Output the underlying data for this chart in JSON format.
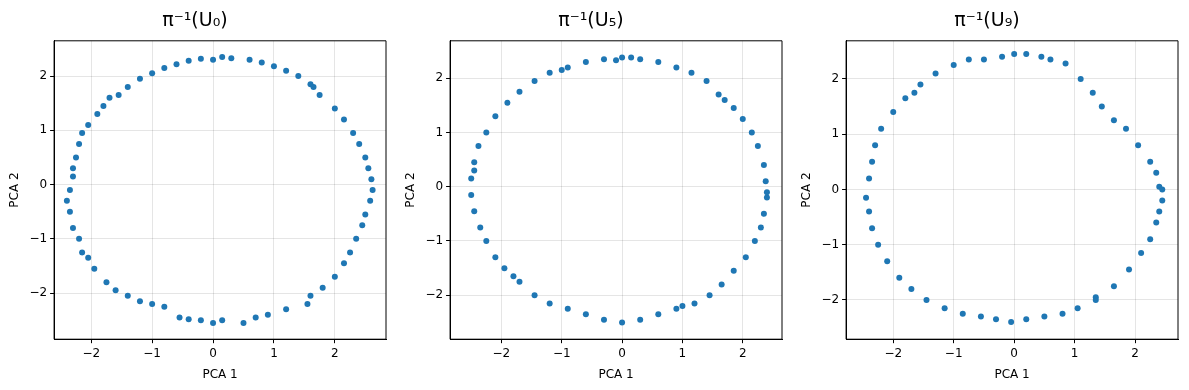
{
  "chart_data": [
    {
      "type": "scatter",
      "title": "π⁻¹(U₀)",
      "xlabel": "PCA 1",
      "ylabel": "PCA 2",
      "xlim": [
        -2.61,
        2.84
      ],
      "ylim": [
        -2.85,
        2.65
      ],
      "xticks": [
        -2,
        -1,
        0,
        1,
        2
      ],
      "yticks": [
        -2,
        -1,
        0,
        1,
        2
      ],
      "grid": true,
      "marker": "circle",
      "series": [
        {
          "color": "#1f77b4",
          "x": [
            0.15,
            0.3,
            0.0,
            -0.2,
            -0.4,
            -0.6,
            0.6,
            0.8,
            1.0,
            1.2,
            1.4,
            1.6,
            1.65,
            1.75,
            2.0,
            2.15,
            2.3,
            2.4,
            2.5,
            2.55,
            2.6,
            2.62,
            2.58,
            2.5,
            2.45,
            2.35,
            2.25,
            2.15,
            2.0,
            1.8,
            1.6,
            1.55,
            1.2,
            0.9,
            0.7,
            0.5,
            0.15,
            0.0,
            -0.2,
            -0.4,
            -0.55,
            -0.8,
            -1.0,
            -1.2,
            -1.4,
            -1.6,
            -1.75,
            -1.95,
            -2.05,
            -2.15,
            -2.2,
            -2.3,
            -2.35,
            -2.4,
            -2.35,
            -2.3,
            -2.3,
            -2.25,
            -2.2,
            -2.15,
            -2.05,
            -1.9,
            -1.8,
            -1.7,
            -1.55,
            -1.4,
            -1.2,
            -1.0,
            -0.8
          ],
          "values": [
            2.35,
            2.33,
            2.3,
            2.32,
            2.28,
            2.22,
            2.3,
            2.25,
            2.18,
            2.1,
            2.0,
            1.85,
            1.8,
            1.65,
            1.4,
            1.2,
            0.95,
            0.75,
            0.5,
            0.3,
            0.1,
            -0.1,
            -0.3,
            -0.55,
            -0.75,
            -1.0,
            -1.25,
            -1.45,
            -1.7,
            -1.9,
            -2.05,
            -2.2,
            -2.3,
            -2.4,
            -2.45,
            -2.55,
            -2.5,
            -2.55,
            -2.5,
            -2.48,
            -2.45,
            -2.25,
            -2.2,
            -2.15,
            -2.05,
            -1.95,
            -1.8,
            -1.55,
            -1.35,
            -1.25,
            -1.0,
            -0.8,
            -0.5,
            -0.3,
            -0.1,
            0.15,
            0.3,
            0.5,
            0.75,
            0.95,
            1.1,
            1.3,
            1.45,
            1.6,
            1.65,
            1.8,
            1.95,
            2.05,
            2.15
          ]
        }
      ]
    },
    {
      "type": "scatter",
      "title": "π⁻¹(U₅)",
      "xlabel": "PCA 1",
      "ylabel": "PCA 2",
      "xlim": [
        -2.85,
        2.65
      ],
      "ylim": [
        -2.81,
        2.69
      ],
      "xticks": [
        -2,
        -1,
        0,
        1,
        2
      ],
      "yticks": [
        -2,
        -1,
        0,
        1,
        2
      ],
      "grid": true,
      "marker": "circle",
      "series": [
        {
          "color": "#1f77b4",
          "x": [
            0,
            0.3,
            0.6,
            0.9,
            1.15,
            1.4,
            1.6,
            1.85,
            2.0,
            2.15,
            2.25,
            2.35,
            2.38,
            2.4,
            2.35,
            2.3,
            2.2,
            2.05,
            1.85,
            1.65,
            1.45,
            1.2,
            0.9,
            0.6,
            0.3,
            0.0,
            -0.3,
            -0.6,
            -0.9,
            -1.2,
            -1.45,
            -1.7,
            -1.95,
            -2.1,
            -2.25,
            -2.35,
            -2.45,
            -2.5,
            -2.5,
            -2.45,
            -2.38,
            -2.25,
            -2.1,
            -1.9,
            -1.7,
            -1.45,
            -1.2,
            -0.9,
            -0.6,
            -0.3,
            -0.1,
            0.15,
            2.4,
            -2.45,
            1.0,
            -1.0,
            1.7,
            -1.8
          ],
          "values": [
            2.38,
            2.35,
            2.3,
            2.2,
            2.1,
            1.95,
            1.7,
            1.45,
            1.25,
            1.0,
            0.75,
            0.4,
            0.1,
            -0.2,
            -0.5,
            -0.75,
            -1.0,
            -1.3,
            -1.55,
            -1.8,
            -2.0,
            -2.15,
            -2.25,
            -2.35,
            -2.45,
            -2.5,
            -2.45,
            -2.35,
            -2.25,
            -2.15,
            -2.0,
            -1.75,
            -1.5,
            -1.3,
            -1.0,
            -0.75,
            -0.45,
            -0.15,
            0.15,
            0.45,
            0.75,
            1.0,
            1.3,
            1.55,
            1.75,
            1.95,
            2.1,
            2.2,
            2.3,
            2.35,
            2.33,
            2.38,
            -0.1,
            0.3,
            -2.2,
            2.15,
            1.6,
            -1.65
          ]
        }
      ]
    },
    {
      "type": "scatter",
      "title": "π⁻¹(U₉)",
      "xlabel": "PCA 1",
      "ylabel": "PCA 2",
      "xlim": [
        -2.78,
        2.71
      ],
      "ylim": [
        -2.71,
        2.69
      ],
      "xticks": [
        -2,
        -1,
        0,
        1,
        2
      ],
      "yticks": [
        -2,
        -1,
        0,
        1,
        2
      ],
      "grid": true,
      "marker": "circle",
      "series": [
        {
          "color": "#1f77b4",
          "x": [
            0,
            0.2,
            0.45,
            0.6,
            0.85,
            1.1,
            1.3,
            1.45,
            1.65,
            1.85,
            2.05,
            2.25,
            2.35,
            2.4,
            2.45,
            2.4,
            2.35,
            2.25,
            2.1,
            1.9,
            1.65,
            1.35,
            1.05,
            0.8,
            0.5,
            0.2,
            -0.05,
            -0.3,
            -0.55,
            -0.85,
            -1.15,
            -1.45,
            -1.7,
            -1.9,
            -2.1,
            -2.25,
            -2.35,
            -2.4,
            -2.45,
            -2.4,
            -2.35,
            -2.3,
            -2.2,
            -2.0,
            -1.8,
            -1.55,
            -1.3,
            -1.0,
            -0.75,
            -0.5,
            -0.2,
            2.45,
            -1.65,
            1.35
          ],
          "values": [
            2.45,
            2.45,
            2.4,
            2.35,
            2.28,
            2.0,
            1.75,
            1.5,
            1.25,
            1.1,
            0.8,
            0.5,
            0.3,
            0.05,
            -0.2,
            -0.4,
            -0.6,
            -0.9,
            -1.15,
            -1.45,
            -1.75,
            -1.95,
            -2.15,
            -2.25,
            -2.3,
            -2.35,
            -2.4,
            -2.35,
            -2.3,
            -2.25,
            -2.15,
            -2.0,
            -1.8,
            -1.6,
            -1.3,
            -1.0,
            -0.7,
            -0.4,
            -0.15,
            0.2,
            0.5,
            0.8,
            1.1,
            1.4,
            1.65,
            1.9,
            2.1,
            2.25,
            2.35,
            2.35,
            2.4,
            0.0,
            1.75,
            -2.0
          ]
        }
      ]
    }
  ]
}
